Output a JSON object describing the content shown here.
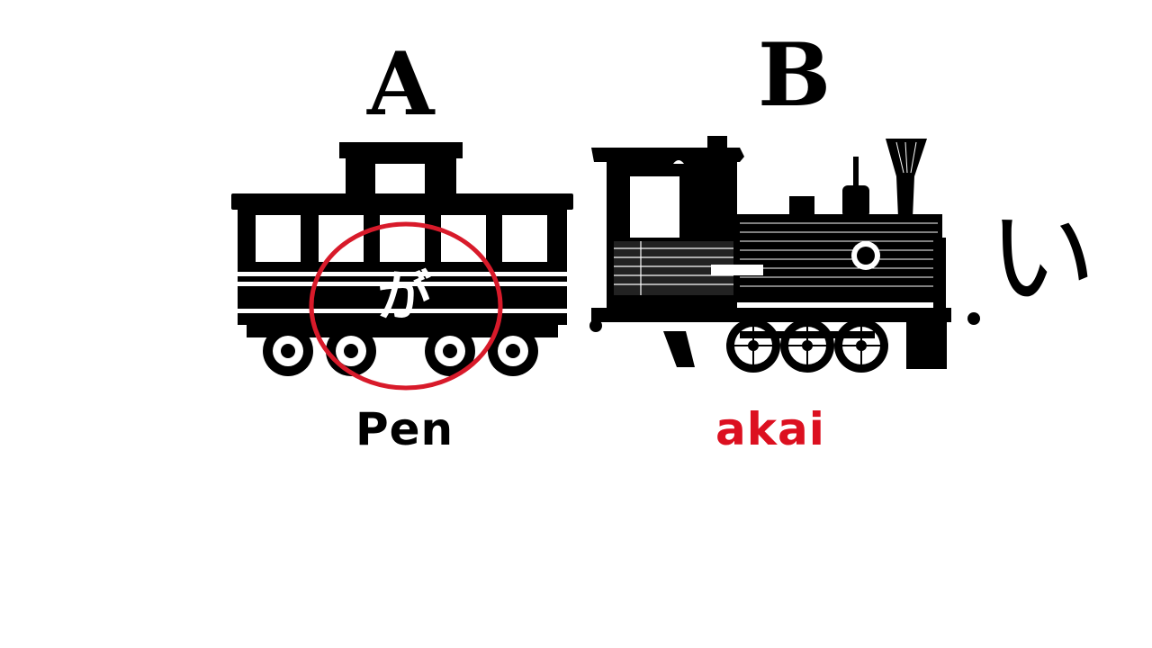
{
  "labels": {
    "a": "A",
    "b": "B"
  },
  "words": {
    "a": "Pen",
    "b": "akai"
  },
  "kana": {
    "particle": "が",
    "side": "い"
  },
  "colors": {
    "word_b": "#dc1020",
    "circle": "#d81a2a",
    "ink": "#000000"
  }
}
